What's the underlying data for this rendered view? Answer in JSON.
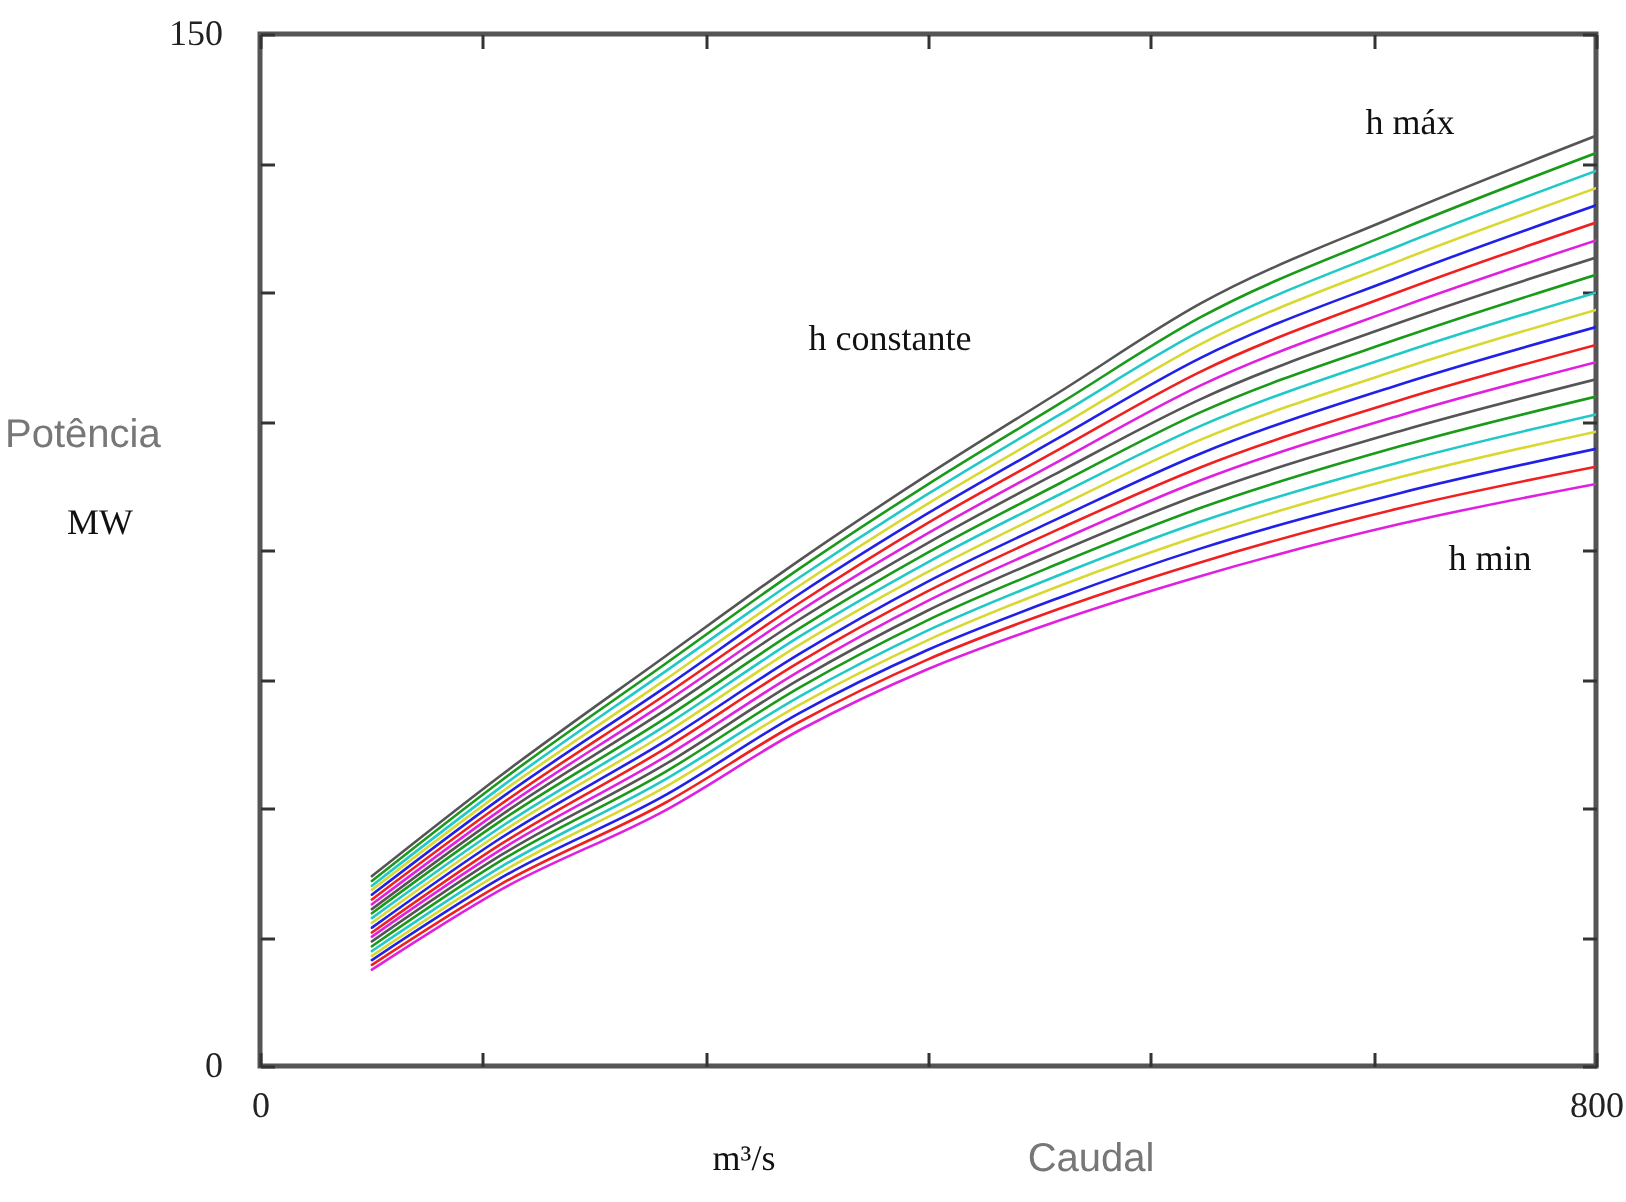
{
  "chart_data": {
    "type": "line",
    "xlabel": "Caudal",
    "ylabel": "Potência",
    "annotations": [
      "MW",
      "m³/s",
      "h máx",
      "h constante",
      "h min"
    ],
    "xlim": [
      0,
      800
    ],
    "ylim": [
      0,
      150
    ],
    "xticks": [
      0,
      {
        "value": 133.33,
        "label": null
      },
      {
        "value": 266.67,
        "label": null
      },
      {
        "value": 400,
        "label": null
      },
      {
        "value": 533.33,
        "label": null
      },
      {
        "value": 666.67,
        "label": null
      },
      800
    ],
    "yticks": [
      0,
      {
        "value": 18.75,
        "label": null
      },
      {
        "value": 37.5,
        "label": null
      },
      {
        "value": 56.25,
        "label": null
      },
      {
        "value": 75,
        "label": null
      },
      {
        "value": 93.75,
        "label": null
      },
      {
        "value": 112.5,
        "label": null
      },
      {
        "value": 131.25,
        "label": null
      },
      150
    ],
    "x": [
      67,
      144,
      243,
      323,
      399,
      479,
      563,
      683,
      800
    ],
    "series": [
      {
        "color": "#555555",
        "values": [
          27.6,
          42.2,
          59.6,
          73.5,
          85.8,
          98.0,
          110.8,
          123.8,
          135.2
        ]
      },
      {
        "color": "#1a9a1a",
        "values": [
          26.9,
          41.4,
          58.5,
          72.3,
          84.4,
          96.3,
          108.8,
          121.6,
          132.7
        ]
      },
      {
        "color": "#20c8c8",
        "values": [
          26.2,
          40.5,
          57.4,
          71.0,
          83.0,
          94.7,
          106.8,
          119.3,
          130.1
        ]
      },
      {
        "color": "#d8d830",
        "values": [
          25.6,
          39.7,
          56.2,
          69.8,
          81.6,
          93.0,
          104.9,
          117.1,
          127.6
        ]
      },
      {
        "color": "#2020e8",
        "values": [
          24.9,
          38.9,
          55.1,
          68.6,
          80.2,
          91.4,
          102.9,
          114.8,
          125.1
        ]
      },
      {
        "color": "#f02020",
        "values": [
          24.2,
          38.0,
          54.0,
          67.3,
          78.8,
          89.7,
          100.9,
          112.6,
          122.6
        ]
      },
      {
        "color": "#e020e0",
        "values": [
          23.5,
          37.2,
          52.9,
          66.1,
          77.3,
          88.0,
          98.9,
          110.3,
          120.0
        ]
      },
      {
        "color": "#555555",
        "values": [
          22.8,
          36.4,
          51.8,
          64.9,
          75.9,
          86.4,
          96.9,
          108.1,
          117.5
        ]
      },
      {
        "color": "#1a9a1a",
        "values": [
          22.2,
          35.6,
          50.6,
          63.6,
          74.5,
          84.7,
          95.0,
          105.8,
          115.0
        ]
      },
      {
        "color": "#20c8c8",
        "values": [
          21.5,
          34.7,
          49.5,
          62.4,
          73.1,
          83.1,
          93.0,
          103.6,
          112.4
        ]
      },
      {
        "color": "#d8d830",
        "values": [
          20.8,
          33.9,
          48.4,
          61.2,
          71.7,
          81.4,
          91.0,
          101.3,
          109.9
        ]
      },
      {
        "color": "#2020e8",
        "values": [
          20.1,
          33.1,
          47.3,
          59.9,
          70.3,
          79.7,
          89.0,
          99.1,
          107.4
        ]
      },
      {
        "color": "#f02020",
        "values": [
          19.4,
          32.2,
          46.2,
          58.7,
          68.9,
          78.1,
          87.0,
          96.8,
          104.8
        ]
      },
      {
        "color": "#e020e0",
        "values": [
          18.8,
          31.4,
          45.0,
          57.4,
          67.5,
          76.4,
          85.1,
          94.6,
          102.3
        ]
      },
      {
        "color": "#555555",
        "values": [
          18.1,
          30.6,
          43.9,
          56.2,
          66.1,
          74.8,
          83.1,
          92.3,
          99.8
        ]
      },
      {
        "color": "#1a9a1a",
        "values": [
          17.4,
          29.8,
          42.8,
          55.0,
          64.7,
          73.1,
          81.1,
          90.1,
          97.3
        ]
      },
      {
        "color": "#20c8c8",
        "values": [
          16.7,
          28.9,
          41.7,
          53.7,
          63.2,
          71.4,
          79.1,
          87.8,
          94.7
        ]
      },
      {
        "color": "#d8d830",
        "values": [
          16.0,
          28.1,
          40.6,
          52.5,
          61.8,
          69.8,
          77.1,
          85.6,
          92.2
        ]
      },
      {
        "color": "#2020e8",
        "values": [
          15.4,
          27.3,
          39.4,
          51.3,
          60.4,
          68.1,
          75.2,
          83.3,
          89.7
        ]
      },
      {
        "color": "#f02020",
        "values": [
          14.7,
          26.4,
          38.3,
          50.0,
          59.0,
          66.5,
          73.2,
          81.1,
          87.1
        ]
      },
      {
        "color": "#e020e0",
        "values": [
          14.0,
          25.6,
          37.2,
          48.8,
          57.6,
          64.8,
          71.2,
          78.8,
          84.6
        ]
      }
    ]
  }
}
